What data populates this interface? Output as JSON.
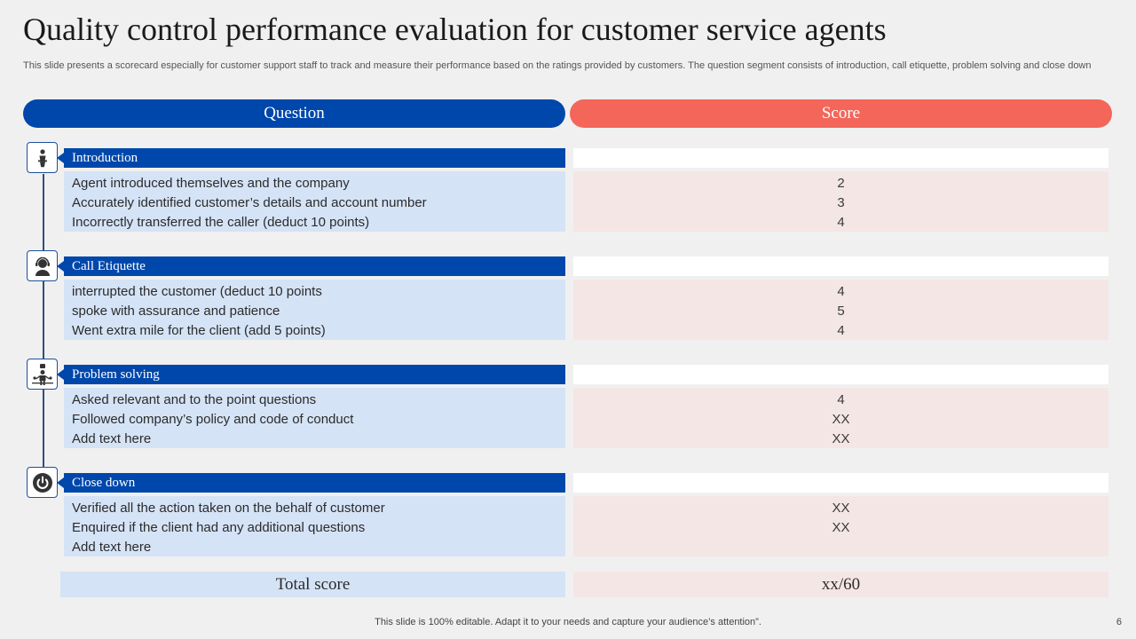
{
  "slide": {
    "title": "Quality control performance evaluation for customer service agents",
    "subtitle": "This slide presents a scorecard especially for customer support staff to track and measure their performance based on the ratings provided by customers. The question segment consists of introduction, call etiquette, problem solving and close down",
    "footer": "This slide is 100% editable. Adapt it to your needs and capture your audience’s attention”.",
    "page_number": "6"
  },
  "headers": {
    "question": "Question",
    "score": "Score"
  },
  "colors": {
    "question_blue": "#0047ab",
    "score_coral": "#f4665a",
    "row_blue": "#d5e3f6",
    "row_pink": "#f5e6e6"
  },
  "sections": [
    {
      "title": "Introduction",
      "icon": "presenter-icon",
      "rows": [
        {
          "question": "Agent introduced themselves and the company",
          "score": "2"
        },
        {
          "question": "Accurately identified customer’s details and account number",
          "score": "3"
        },
        {
          "question": "Incorrectly transferred the caller (deduct 10 points)",
          "score": "4"
        }
      ]
    },
    {
      "title": "Call Etiquette",
      "icon": "headset-agent-icon",
      "rows": [
        {
          "question": "interrupted the customer (deduct 10 points",
          "score": "4"
        },
        {
          "question": "spoke with assurance and patience",
          "score": "5"
        },
        {
          "question": "Went extra mile for the client (add 5 points)",
          "score": "4"
        }
      ]
    },
    {
      "title": "Problem solving",
      "icon": "problem-solving-icon",
      "rows": [
        {
          "question": "Asked relevant and to the point questions",
          "score": "4"
        },
        {
          "question": "Followed company’s policy and code of conduct",
          "score": "XX"
        },
        {
          "question": "Add text here",
          "score": "XX"
        }
      ]
    },
    {
      "title": "Close down",
      "icon": "power-icon",
      "rows": [
        {
          "question": "Verified all the action taken on the behalf of customer",
          "score": "XX"
        },
        {
          "question": "Enquired if the client had any additional questions",
          "score": "XX"
        },
        {
          "question": "Add text here",
          "score": ""
        }
      ]
    }
  ],
  "total": {
    "label": "Total score",
    "value": "xx/60"
  }
}
